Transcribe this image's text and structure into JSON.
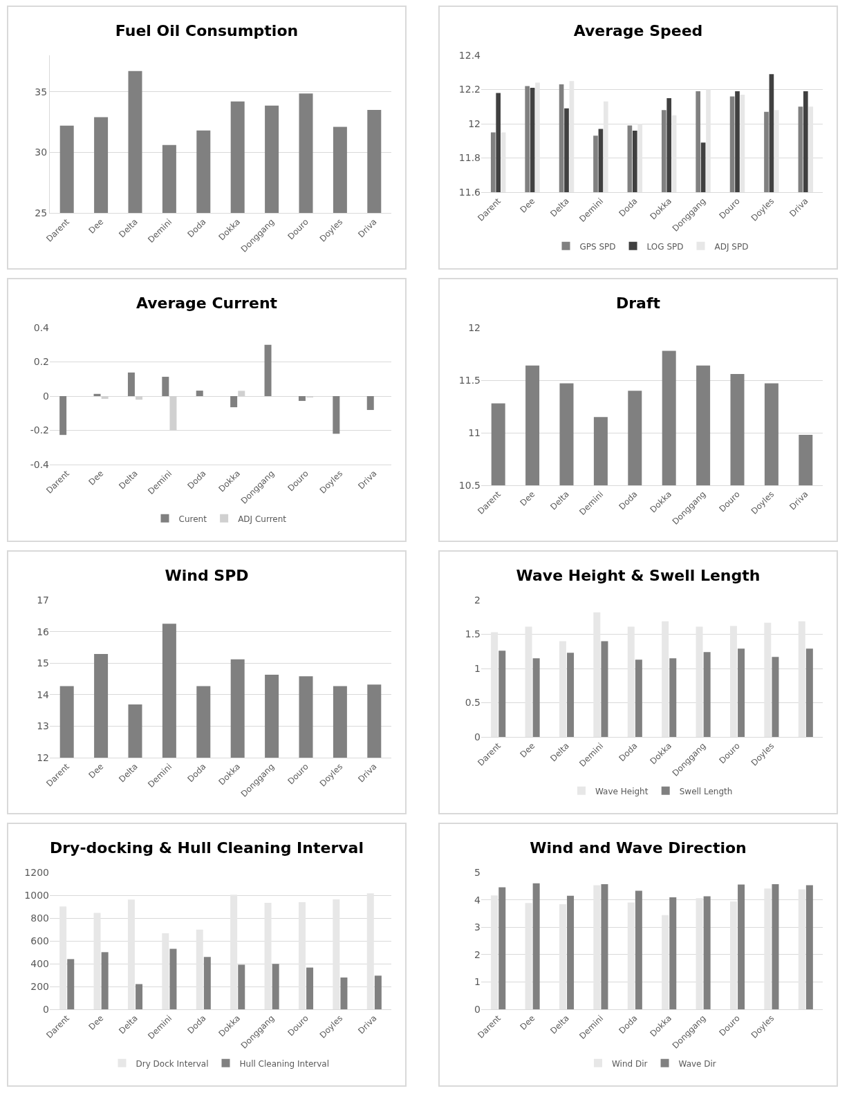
{
  "chart_data": [
    {
      "type": "bar",
      "title": "Fuel Oil Consumption",
      "categories": [
        "Darent",
        "Dee",
        "Delta",
        "Demini",
        "Doda",
        "Dokka",
        "Donggang",
        "Douro",
        "Doyles",
        "Driva"
      ],
      "values": [
        32.2,
        32.9,
        36.7,
        30.6,
        31.8,
        34.2,
        33.85,
        34.85,
        32.1,
        33.5
      ],
      "color": "#808080",
      "ylim": [
        25,
        38
      ],
      "yticks": [
        25,
        30,
        35
      ],
      "grid": "y"
    },
    {
      "type": "bar",
      "title": "Average Speed",
      "categories": [
        "Darent",
        "Dee",
        "Delta",
        "Demini",
        "Doda",
        "Dokka",
        "Donggang",
        "Douro",
        "Doyles",
        "Driva"
      ],
      "series": [
        {
          "name": "GPS SPD",
          "color": "#808080",
          "values": [
            11.95,
            12.22,
            12.23,
            11.93,
            11.99,
            12.08,
            12.19,
            12.16,
            12.07,
            12.1
          ]
        },
        {
          "name": "LOG SPD",
          "color": "#404040",
          "values": [
            12.18,
            12.21,
            12.09,
            11.97,
            11.96,
            12.15,
            11.89,
            12.19,
            12.29,
            12.19
          ]
        },
        {
          "name": "ADJ SPD",
          "color": "#e7e7e7",
          "values": [
            11.95,
            12.24,
            12.25,
            12.13,
            12.0,
            12.05,
            12.2,
            12.17,
            12.08,
            12.1
          ]
        }
      ],
      "ylim": [
        11.6,
        12.4
      ],
      "yticks": [
        11.6,
        11.8,
        12,
        12.2,
        12.4
      ],
      "grid": "y",
      "legend": "bottom"
    },
    {
      "type": "bar",
      "title": "Average Current",
      "categories": [
        "Darent",
        "Dee",
        "Delta",
        "Demini",
        "Doda",
        "Dokka",
        "Donggang",
        "Douro",
        "Doyles",
        "Driva"
      ],
      "series": [
        {
          "name": "Curent",
          "color": "#808080",
          "values": [
            -0.227,
            0.013,
            0.138,
            0.113,
            0.032,
            -0.065,
            0.3,
            -0.028,
            -0.22,
            -0.081
          ]
        },
        {
          "name": "ADJ Current",
          "color": "#d0d0d0",
          "values": [
            0,
            -0.016,
            -0.021,
            -0.2,
            0,
            0.031,
            0,
            -0.006,
            0,
            0
          ]
        }
      ],
      "ylim": [
        -0.4,
        0.4
      ],
      "yticks": [
        -0.4,
        -0.2,
        0,
        0.2,
        0.4
      ],
      "grid": "y",
      "legend": "bottom"
    },
    {
      "type": "bar",
      "title": "Draft",
      "categories": [
        "Darent",
        "Dee",
        "Delta",
        "Demini",
        "Doda",
        "Dokka",
        "Donggang",
        "Douro",
        "Doyles",
        "Driva"
      ],
      "values": [
        11.28,
        11.64,
        11.47,
        11.15,
        11.4,
        11.78,
        11.64,
        11.56,
        11.47,
        10.98
      ],
      "color": "#808080",
      "ylim": [
        10.5,
        12
      ],
      "yticks": [
        10.5,
        11,
        11.5,
        12
      ],
      "grid": "y"
    },
    {
      "type": "bar",
      "title": "Wind SPD",
      "categories": [
        "Darent",
        "Dee",
        "Delta",
        "Demini",
        "Doda",
        "Dokka",
        "Donggang",
        "Douro",
        "Doyles",
        "Driva"
      ],
      "values": [
        14.27,
        15.29,
        13.69,
        16.25,
        14.27,
        15.12,
        14.63,
        14.58,
        14.27,
        14.32
      ],
      "color": "#808080",
      "ylim": [
        12,
        17
      ],
      "yticks": [
        12,
        13,
        14,
        15,
        16,
        17
      ],
      "grid": "y"
    },
    {
      "type": "bar",
      "title": "Wave Height & Swell Length",
      "categories": [
        "Darent",
        "Dee",
        "Delta",
        "Demini",
        "Doda",
        "Dokka",
        "Donggang",
        "Douro",
        "Doyles",
        null
      ],
      "series": [
        {
          "name": "Wave Height",
          "color": "#e7e7e7",
          "values": [
            1.53,
            1.61,
            1.4,
            1.82,
            1.61,
            1.69,
            1.61,
            1.62,
            1.67,
            1.69
          ]
        },
        {
          "name": "Swell Length",
          "color": "#808080",
          "values": [
            1.26,
            1.15,
            1.23,
            1.4,
            1.13,
            1.15,
            1.24,
            1.29,
            1.17,
            1.29
          ]
        }
      ],
      "ylim": [
        0,
        2
      ],
      "yticks": [
        0,
        0.5,
        1,
        1.5,
        2
      ],
      "grid": "y",
      "legend": "bottom"
    },
    {
      "type": "bar",
      "title": "Dry-docking & Hull Cleaning Interval",
      "categories": [
        "Darent",
        "Dee",
        "Delta",
        "Demini",
        "Doda",
        "Dokka",
        "Donggang",
        "Douro",
        "Doyles",
        "Driva"
      ],
      "series": [
        {
          "name": "Dry Dock Interval",
          "color": "#e7e7e7",
          "values": [
            901,
            845,
            962,
            667,
            699,
            1005,
            933,
            939,
            964,
            1016
          ]
        },
        {
          "name": "Hull Cleaning Interval",
          "color": "#808080",
          "values": [
            440,
            501,
            221,
            530,
            459,
            391,
            398,
            366,
            279,
            295
          ]
        }
      ],
      "ylim": [
        0,
        1200
      ],
      "yticks": [
        0,
        200,
        400,
        600,
        800,
        1000,
        1200
      ],
      "grid": "y",
      "legend": "bottom"
    },
    {
      "type": "bar",
      "title": "Wind and Wave Direction",
      "categories": [
        "Darent",
        "Dee",
        "Delta",
        "Demini",
        "Doda",
        "Dokka",
        "Donggang",
        "Douro",
        "Doyles",
        null
      ],
      "series": [
        {
          "name": "Wind Dir",
          "color": "#e7e7e7",
          "values": [
            4.16,
            3.88,
            3.84,
            4.53,
            3.9,
            3.44,
            4.06,
            3.94,
            4.41,
            4.38
          ]
        },
        {
          "name": "Wave Dir",
          "color": "#808080",
          "values": [
            4.46,
            4.6,
            4.15,
            4.57,
            4.33,
            4.09,
            4.13,
            4.56,
            4.57,
            4.53
          ]
        }
      ],
      "ylim": [
        0,
        5
      ],
      "yticks": [
        0,
        1,
        2,
        3,
        4,
        5
      ],
      "grid": "y",
      "legend": "bottom"
    }
  ]
}
